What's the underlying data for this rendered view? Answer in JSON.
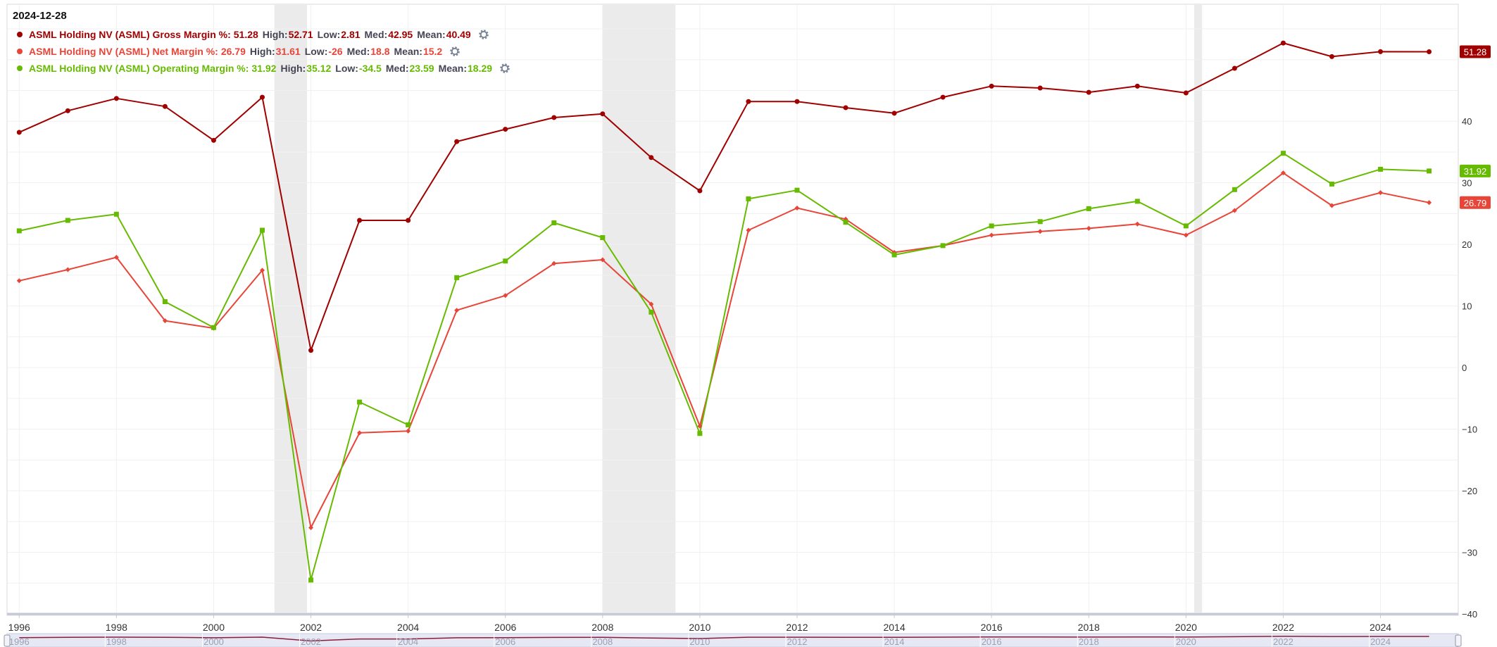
{
  "legend": {
    "date": "2024-12-28",
    "gear_icon": "gear-icon",
    "entries": [
      {
        "label": "ASML Holding NV (ASML) Gross Margin %:",
        "value": "51.28",
        "high_label": "High:",
        "high": "52.71",
        "low_label": "Low:",
        "low": "2.81",
        "med_label": "Med:",
        "med": "42.95",
        "mean_label": "Mean:",
        "mean": "40.49"
      },
      {
        "label": "ASML Holding NV (ASML) Net Margin %:",
        "value": "26.79",
        "high_label": "High:",
        "high": "31.61",
        "low_label": "Low:",
        "low": "-26",
        "med_label": "Med:",
        "med": "18.8",
        "mean_label": "Mean:",
        "mean": "15.2"
      },
      {
        "label": "ASML Holding NV (ASML) Operating Margin %:",
        "value": "31.92",
        "high_label": "High:",
        "high": "35.12",
        "low_label": "Low:",
        "low": "-34.5",
        "med_label": "Med:",
        "med": "23.59",
        "mean_label": "Mean:",
        "mean": "18.29"
      }
    ]
  },
  "chart_data": {
    "type": "line",
    "title": "",
    "xlabel": "",
    "ylabel": "",
    "x": [
      1996,
      1997,
      1998,
      1999,
      2000,
      2001,
      2002,
      2003,
      2004,
      2005,
      2006,
      2007,
      2008,
      2009,
      2010,
      2011,
      2012,
      2013,
      2014,
      2015,
      2016,
      2017,
      2018,
      2019,
      2020,
      2021,
      2022,
      2023,
      2024,
      2025
    ],
    "xlim": [
      1995.75,
      2025.6
    ],
    "ylim": [
      -40,
      59
    ],
    "x_ticks": [
      "1996",
      "1998",
      "2000",
      "2002",
      "2004",
      "2006",
      "2008",
      "2010",
      "2012",
      "2014",
      "2016",
      "2018",
      "2020",
      "2022",
      "2024"
    ],
    "y_ticks": [
      "40",
      "30",
      "20",
      "10",
      "0",
      "-10",
      "-20",
      "-30",
      "-40"
    ],
    "grid": true,
    "legend_position": "top-left",
    "shaded_ranges": [
      [
        2001.25,
        2001.92
      ],
      [
        2008.0,
        2009.5
      ],
      [
        2020.17,
        2020.33
      ]
    ],
    "series": [
      {
        "name": "ASML Holding NV (ASML) Gross Margin %",
        "color": "#a00000",
        "marker": "circle",
        "last_value_label": "51.28",
        "values": [
          38.2,
          41.7,
          43.7,
          42.4,
          36.9,
          43.9,
          2.8,
          23.9,
          23.9,
          36.7,
          38.7,
          40.6,
          41.2,
          34.1,
          28.7,
          43.2,
          43.2,
          42.2,
          41.3,
          43.9,
          45.7,
          45.4,
          44.7,
          45.7,
          44.6,
          48.6,
          52.7,
          50.5,
          51.3,
          51.28
        ]
      },
      {
        "name": "ASML Holding NV (ASML) Net Margin %",
        "color": "#e84538",
        "marker": "diamond",
        "last_value_label": "26.79",
        "values": [
          14.1,
          15.9,
          17.9,
          7.6,
          6.4,
          15.8,
          -26.0,
          -10.6,
          -10.3,
          9.3,
          11.7,
          16.9,
          17.5,
          10.3,
          -9.5,
          22.3,
          25.9,
          24.1,
          18.7,
          19.8,
          21.5,
          22.1,
          22.6,
          23.3,
          21.5,
          25.5,
          31.6,
          26.3,
          28.4,
          26.79
        ]
      },
      {
        "name": "ASML Holding NV (ASML) Operating Margin %",
        "color": "#66bb00",
        "marker": "square",
        "last_value_label": "31.92",
        "values": [
          22.2,
          23.9,
          24.9,
          10.7,
          6.5,
          22.3,
          -34.5,
          -5.6,
          -9.3,
          14.6,
          17.3,
          23.5,
          21.1,
          9.0,
          -10.7,
          27.4,
          28.8,
          23.6,
          18.3,
          19.8,
          23.0,
          23.7,
          25.8,
          27.0,
          23.0,
          28.9,
          34.8,
          29.8,
          32.2,
          31.92
        ]
      }
    ]
  }
}
